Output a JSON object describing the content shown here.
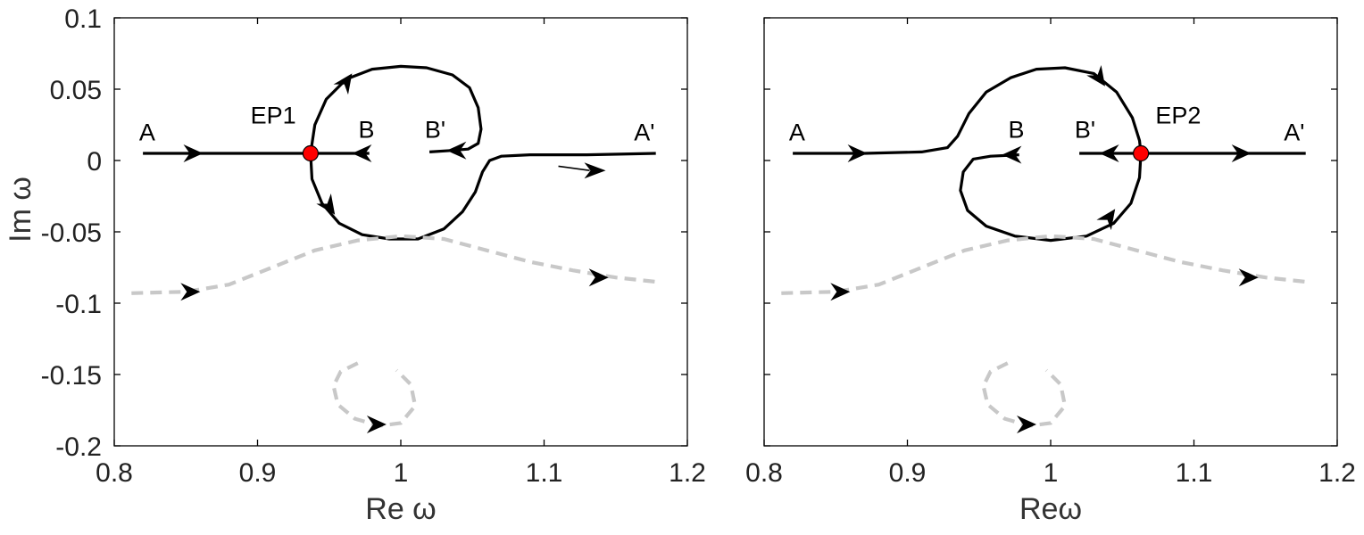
{
  "chart_data": [
    {
      "type": "line",
      "panel": "left",
      "xlabel": "Re ω",
      "ylabel": "Im ω",
      "xlim": [
        0.8,
        1.2
      ],
      "ylim": [
        -0.2,
        0.1
      ],
      "xticks": [
        "0.8",
        "0.9",
        "1",
        "1.1",
        "1.2"
      ],
      "yticks": [
        "0.1",
        "0.05",
        "0",
        "-0.05",
        "-0.1",
        "-0.15",
        "-0.2"
      ],
      "ep_point": {
        "label": "EP1",
        "x": 0.937,
        "y": 0.005
      },
      "annotations": [
        {
          "text": "A",
          "x": 0.823,
          "y": 0.014
        },
        {
          "text": "EP1",
          "x": 0.911,
          "y": 0.026
        },
        {
          "text": "B",
          "x": 0.976,
          "y": 0.016
        },
        {
          "text": "B'",
          "x": 1.024,
          "y": 0.016
        },
        {
          "text": "A'",
          "x": 1.17,
          "y": 0.014
        }
      ],
      "series": [
        {
          "style": "solid",
          "points": [
            [
              0.82,
              0.005
            ],
            [
              0.86,
              0.005
            ],
            [
              0.9,
              0.005
            ],
            [
              0.937,
              0.005
            ],
            [
              0.96,
              0.005
            ],
            [
              0.978,
              0.005
            ]
          ]
        },
        {
          "style": "solid",
          "points": [
            [
              1.02,
              0.006
            ],
            [
              1.035,
              0.007
            ],
            [
              1.047,
              0.008
            ],
            [
              1.054,
              0.012
            ],
            [
              1.056,
              0.022
            ],
            [
              1.054,
              0.037
            ],
            [
              1.048,
              0.051
            ],
            [
              1.036,
              0.06
            ],
            [
              1.018,
              0.065
            ],
            [
              1.0,
              0.066
            ],
            [
              0.98,
              0.064
            ],
            [
              0.962,
              0.057
            ],
            [
              0.948,
              0.043
            ],
            [
              0.94,
              0.025
            ],
            [
              0.937,
              0.005
            ],
            [
              0.938,
              -0.013
            ],
            [
              0.945,
              -0.03
            ],
            [
              0.957,
              -0.044
            ],
            [
              0.973,
              -0.052
            ],
            [
              0.992,
              -0.055
            ],
            [
              1.012,
              -0.055
            ],
            [
              1.03,
              -0.048
            ],
            [
              1.043,
              -0.036
            ],
            [
              1.052,
              -0.022
            ],
            [
              1.057,
              -0.008
            ],
            [
              1.062,
              0.0
            ],
            [
              1.07,
              0.003
            ],
            [
              1.09,
              0.004
            ],
            [
              1.13,
              0.004
            ],
            [
              1.178,
              0.005
            ]
          ]
        },
        {
          "style": "dashed",
          "points": [
            [
              0.812,
              -0.093
            ],
            [
              0.85,
              -0.092
            ],
            [
              0.88,
              -0.087
            ],
            [
              0.91,
              -0.075
            ],
            [
              0.94,
              -0.063
            ],
            [
              0.97,
              -0.056
            ],
            [
              1.0,
              -0.053
            ],
            [
              1.03,
              -0.055
            ],
            [
              1.06,
              -0.063
            ],
            [
              1.09,
              -0.071
            ],
            [
              1.12,
              -0.077
            ],
            [
              1.15,
              -0.082
            ],
            [
              1.178,
              -0.085
            ]
          ]
        },
        {
          "style": "dashed",
          "points": [
            [
              0.97,
              -0.142
            ],
            [
              0.958,
              -0.148
            ],
            [
              0.953,
              -0.158
            ],
            [
              0.956,
              -0.171
            ],
            [
              0.968,
              -0.181
            ],
            [
              0.985,
              -0.186
            ],
            [
              1.0,
              -0.184
            ],
            [
              1.01,
              -0.172
            ],
            [
              1.007,
              -0.157
            ],
            [
              0.997,
              -0.147
            ]
          ]
        }
      ],
      "arrows": [
        {
          "x": 0.862,
          "y": 0.005,
          "dir": "right"
        },
        {
          "x": 0.966,
          "y": 0.005,
          "dir": "left"
        },
        {
          "x": 1.032,
          "y": 0.007,
          "dir": "left"
        },
        {
          "x": 0.966,
          "y": 0.061,
          "dir": "up-right"
        },
        {
          "x": 0.954,
          "y": -0.038,
          "dir": "down-right"
        },
        {
          "x": 0.86,
          "y": -0.092,
          "dir": "right"
        },
        {
          "x": 1.145,
          "y": -0.082,
          "dir": "right"
        },
        {
          "x": 0.99,
          "y": -0.185,
          "dir": "right"
        }
      ],
      "thin_arrows": [
        {
          "x1": 1.11,
          "y1": -0.004,
          "x2": 1.143,
          "y2": -0.007
        }
      ]
    },
    {
      "type": "line",
      "panel": "right",
      "xlabel": "Reω",
      "ylabel": "",
      "xlim": [
        0.8,
        1.2
      ],
      "ylim": [
        -0.2,
        0.1
      ],
      "xticks": [
        "0.8",
        "0.9",
        "1",
        "1.1",
        "1.2"
      ],
      "yticks": [],
      "ep_point": {
        "label": "EP2",
        "x": 1.063,
        "y": 0.005
      },
      "annotations": [
        {
          "text": "A",
          "x": 0.823,
          "y": 0.014
        },
        {
          "text": "B",
          "x": 0.976,
          "y": 0.016
        },
        {
          "text": "B'",
          "x": 1.024,
          "y": 0.016
        },
        {
          "text": "EP2",
          "x": 1.089,
          "y": 0.026
        },
        {
          "text": "A'",
          "x": 1.17,
          "y": 0.014
        }
      ],
      "series": [
        {
          "style": "solid",
          "points": [
            [
              0.82,
              0.005
            ],
            [
              0.87,
              0.005
            ],
            [
              0.91,
              0.006
            ],
            [
              0.928,
              0.009
            ],
            [
              0.935,
              0.017
            ],
            [
              0.943,
              0.033
            ],
            [
              0.955,
              0.048
            ],
            [
              0.972,
              0.058
            ],
            [
              0.99,
              0.064
            ],
            [
              1.01,
              0.065
            ],
            [
              1.03,
              0.061
            ],
            [
              1.046,
              0.048
            ],
            [
              1.057,
              0.03
            ],
            [
              1.062,
              0.014
            ],
            [
              1.063,
              0.005
            ],
            [
              1.062,
              -0.012
            ],
            [
              1.056,
              -0.03
            ],
            [
              1.044,
              -0.044
            ],
            [
              1.025,
              -0.053
            ],
            [
              1.0,
              -0.056
            ],
            [
              0.975,
              -0.053
            ],
            [
              0.955,
              -0.046
            ],
            [
              0.942,
              -0.035
            ],
            [
              0.937,
              -0.021
            ],
            [
              0.939,
              -0.008
            ],
            [
              0.946,
              0.001
            ],
            [
              0.958,
              0.003
            ],
            [
              0.978,
              0.004
            ]
          ]
        },
        {
          "style": "solid",
          "points": [
            [
              1.02,
              0.005
            ],
            [
              1.04,
              0.005
            ],
            [
              1.063,
              0.005
            ],
            [
              1.09,
              0.005
            ],
            [
              1.13,
              0.005
            ],
            [
              1.178,
              0.005
            ]
          ]
        },
        {
          "style": "dashed",
          "points": [
            [
              0.812,
              -0.093
            ],
            [
              0.85,
              -0.092
            ],
            [
              0.88,
              -0.087
            ],
            [
              0.91,
              -0.075
            ],
            [
              0.94,
              -0.063
            ],
            [
              0.97,
              -0.056
            ],
            [
              1.0,
              -0.053
            ],
            [
              1.03,
              -0.055
            ],
            [
              1.06,
              -0.063
            ],
            [
              1.09,
              -0.071
            ],
            [
              1.12,
              -0.077
            ],
            [
              1.15,
              -0.082
            ],
            [
              1.178,
              -0.085
            ]
          ]
        },
        {
          "style": "dashed",
          "points": [
            [
              0.97,
              -0.142
            ],
            [
              0.958,
              -0.148
            ],
            [
              0.953,
              -0.158
            ],
            [
              0.956,
              -0.171
            ],
            [
              0.968,
              -0.181
            ],
            [
              0.985,
              -0.186
            ],
            [
              1.0,
              -0.184
            ],
            [
              1.01,
              -0.172
            ],
            [
              1.007,
              -0.157
            ],
            [
              0.997,
              -0.147
            ]
          ]
        }
      ],
      "arrows": [
        {
          "x": 0.872,
          "y": 0.005,
          "dir": "right"
        },
        {
          "x": 0.966,
          "y": 0.004,
          "dir": "left"
        },
        {
          "x": 1.034,
          "y": 0.005,
          "dir": "left"
        },
        {
          "x": 1.14,
          "y": 0.005,
          "dir": "right"
        },
        {
          "x": 1.038,
          "y": 0.052,
          "dir": "down-right"
        },
        {
          "x": 1.045,
          "y": -0.034,
          "dir": "up-right"
        },
        {
          "x": 0.86,
          "y": -0.092,
          "dir": "right"
        },
        {
          "x": 1.145,
          "y": -0.082,
          "dir": "right"
        },
        {
          "x": 0.99,
          "y": -0.185,
          "dir": "right"
        }
      ],
      "thin_arrows": []
    }
  ]
}
